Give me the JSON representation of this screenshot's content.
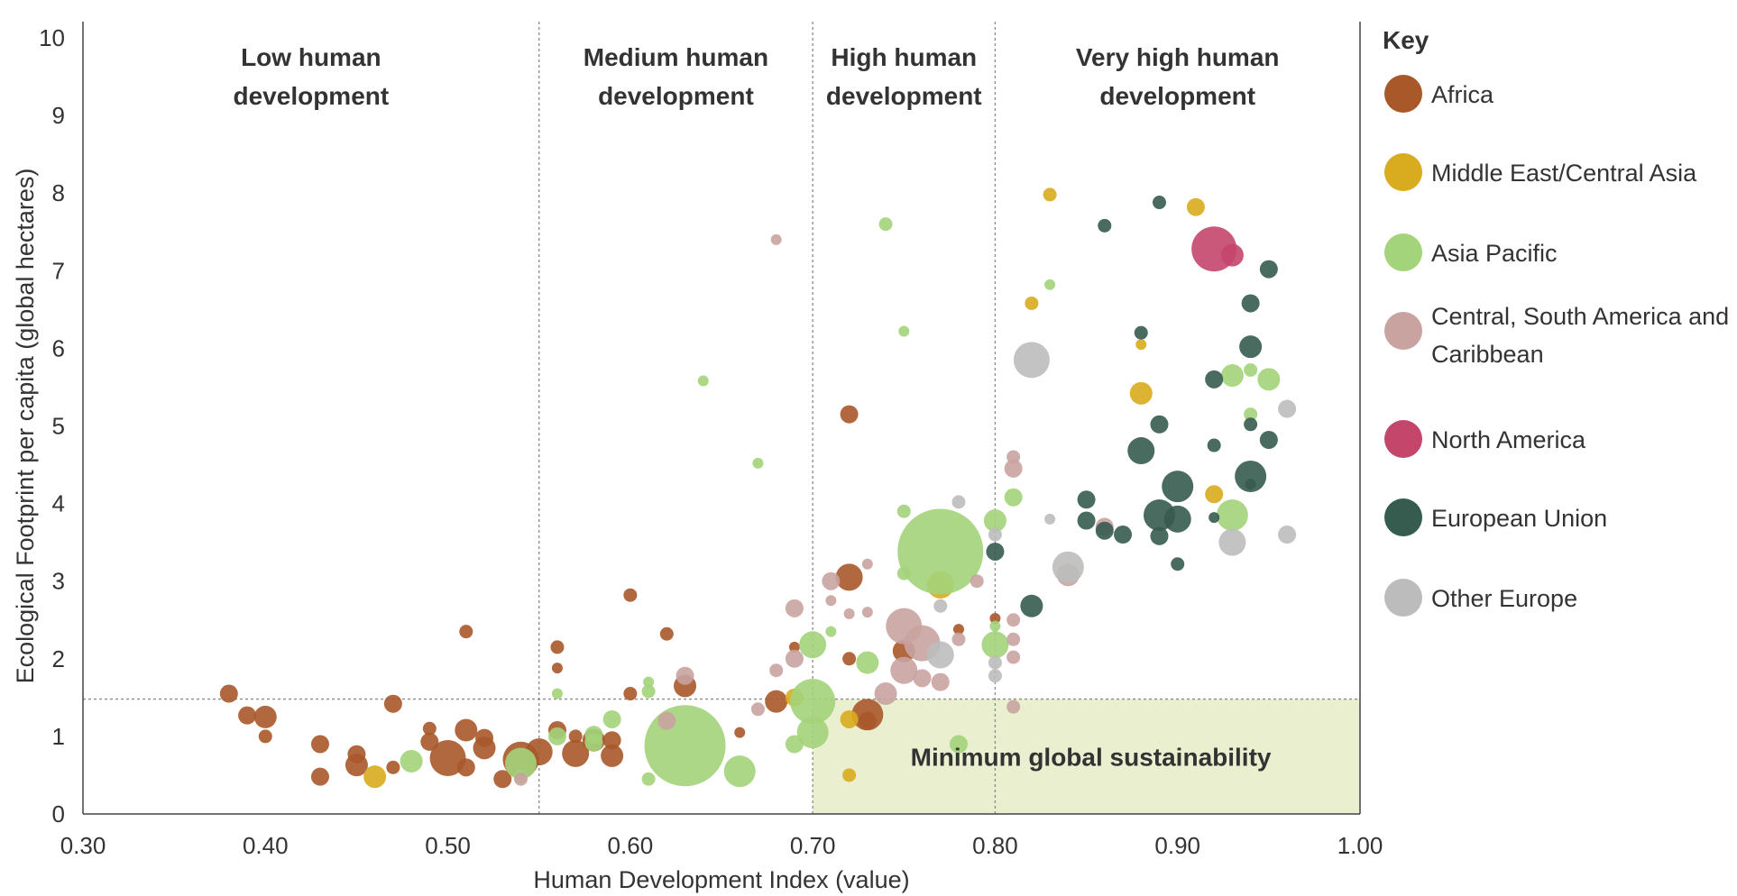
{
  "chart_data": {
    "type": "scatter",
    "subtype": "bubble",
    "xlabel": "Human Development Index (value)",
    "ylabel": "Ecological Footprint per capita (global hectares)",
    "xlim": [
      0.3,
      1.0
    ],
    "ylim": [
      0,
      10
    ],
    "x_ticks": [
      "0.30",
      "0.40",
      "0.50",
      "0.60",
      "0.70",
      "0.80",
      "0.90",
      "1.00"
    ],
    "y_ticks": [
      "0",
      "1",
      "2",
      "3",
      "4",
      "5",
      "6",
      "7",
      "8",
      "9",
      "10"
    ],
    "bands": [
      {
        "x_start": 0.3,
        "x_end": 0.55,
        "line1": "Low human",
        "line2": "development"
      },
      {
        "x_start": 0.55,
        "x_end": 0.7,
        "line1": "Medium human",
        "line2": "development"
      },
      {
        "x_start": 0.7,
        "x_end": 0.8,
        "line1": "High human",
        "line2": "development"
      },
      {
        "x_start": 0.8,
        "x_end": 1.0,
        "line1": "Very high human",
        "line2": "development"
      }
    ],
    "band_boundaries": [
      0.55,
      0.7,
      0.8
    ],
    "biocapacity_line": 1.48,
    "sustainability_region": {
      "x_min": 0.7,
      "x_max": 1.0,
      "y_min": 0,
      "y_max": 1.48,
      "label": "Minimum global sustainability",
      "color": "#e9efcf"
    },
    "legend_title": "Key",
    "legend": [
      {
        "name": "Africa",
        "color": "#a9582a"
      },
      {
        "name": "Middle East/Central Asia",
        "color": "#d9ab1e"
      },
      {
        "name": "Asia Pacific",
        "color": "#a3d37a"
      },
      {
        "name": "Central, South America and Caribbean",
        "color": "#c9a3a0"
      },
      {
        "name": "North America",
        "color": "#c4466b"
      },
      {
        "name": "European Union",
        "color": "#365b4f"
      },
      {
        "name": "Other Europe",
        "color": "#bcbcbc"
      }
    ],
    "series": [
      {
        "name": "Africa",
        "color": "#a9582a",
        "points": [
          [
            0.38,
            1.55,
            2
          ],
          [
            0.39,
            1.27,
            2
          ],
          [
            0.4,
            1.25,
            2.5
          ],
          [
            0.4,
            1.0,
            1.5
          ],
          [
            0.43,
            0.9,
            2
          ],
          [
            0.43,
            0.48,
            2
          ],
          [
            0.45,
            0.77,
            2
          ],
          [
            0.45,
            0.63,
            2.5
          ],
          [
            0.47,
            1.42,
            2
          ],
          [
            0.47,
            0.6,
            1.5
          ],
          [
            0.49,
            1.1,
            1.5
          ],
          [
            0.49,
            0.93,
            2
          ],
          [
            0.5,
            0.72,
            4
          ],
          [
            0.51,
            1.08,
            2.5
          ],
          [
            0.51,
            0.6,
            2
          ],
          [
            0.52,
            0.98,
            2
          ],
          [
            0.52,
            0.85,
            2.5
          ],
          [
            0.53,
            0.45,
            2
          ],
          [
            0.54,
            0.7,
            4
          ],
          [
            0.55,
            0.8,
            3
          ],
          [
            0.51,
            2.35,
            1.5
          ],
          [
            0.56,
            2.15,
            1.5
          ],
          [
            0.56,
            1.88,
            1.2
          ],
          [
            0.56,
            1.08,
            2
          ],
          [
            0.57,
            0.78,
            3
          ],
          [
            0.57,
            1.0,
            1.5
          ],
          [
            0.58,
            0.95,
            2.5
          ],
          [
            0.59,
            0.95,
            2
          ],
          [
            0.59,
            0.75,
            2.5
          ],
          [
            0.6,
            2.82,
            1.5
          ],
          [
            0.6,
            1.55,
            1.5
          ],
          [
            0.62,
            2.32,
            1.5
          ],
          [
            0.63,
            1.65,
            2.5
          ],
          [
            0.66,
            1.05,
            1.2
          ],
          [
            0.68,
            1.45,
            2.5
          ],
          [
            0.69,
            2.15,
            1.2
          ],
          [
            0.72,
            5.15,
            2
          ],
          [
            0.72,
            3.05,
            3
          ],
          [
            0.72,
            2.0,
            1.5
          ],
          [
            0.73,
            1.28,
            3.5
          ],
          [
            0.73,
            1.2,
            2
          ],
          [
            0.75,
            2.1,
            2.5
          ],
          [
            0.78,
            2.38,
            1.2
          ],
          [
            0.8,
            2.52,
            1.2
          ]
        ]
      },
      {
        "name": "Middle East/Central Asia",
        "color": "#d9ab1e",
        "points": [
          [
            0.46,
            0.48,
            2.5
          ],
          [
            0.69,
            1.5,
            2
          ],
          [
            0.72,
            1.22,
            2
          ],
          [
            0.72,
            0.5,
            1.5
          ],
          [
            0.77,
            2.95,
            3
          ],
          [
            0.82,
            6.58,
            1.5
          ],
          [
            0.83,
            7.98,
            1.5
          ],
          [
            0.88,
            6.05,
            1.2
          ],
          [
            0.88,
            5.42,
            2.5
          ],
          [
            0.91,
            7.82,
            2
          ],
          [
            0.92,
            4.12,
            2
          ]
        ]
      },
      {
        "name": "Asia Pacific",
        "color": "#a3d37a",
        "points": [
          [
            0.48,
            0.68,
            2.5
          ],
          [
            0.54,
            0.65,
            3.5
          ],
          [
            0.54,
            0.48,
            1.5
          ],
          [
            0.56,
            1.0,
            2
          ],
          [
            0.56,
            1.55,
            1.2
          ],
          [
            0.58,
            1.02,
            2
          ],
          [
            0.58,
            0.92,
            2
          ],
          [
            0.59,
            1.22,
            2
          ],
          [
            0.61,
            1.58,
            1.5
          ],
          [
            0.61,
            1.7,
            1.2
          ],
          [
            0.61,
            0.45,
            1.5
          ],
          [
            0.63,
            0.88,
            9
          ],
          [
            0.64,
            5.58,
            1.2
          ],
          [
            0.66,
            0.55,
            3.5
          ],
          [
            0.67,
            4.52,
            1.2
          ],
          [
            0.69,
            0.9,
            2
          ],
          [
            0.7,
            1.45,
            5
          ],
          [
            0.7,
            1.05,
            3.5
          ],
          [
            0.7,
            2.18,
            3
          ],
          [
            0.71,
            2.35,
            1.2
          ],
          [
            0.73,
            1.95,
            2.5
          ],
          [
            0.74,
            7.6,
            1.5
          ],
          [
            0.75,
            6.22,
            1.2
          ],
          [
            0.75,
            3.9,
            1.5
          ],
          [
            0.75,
            3.1,
            1.5
          ],
          [
            0.77,
            3.38,
            9.5
          ],
          [
            0.78,
            0.9,
            2
          ],
          [
            0.8,
            3.78,
            2.5
          ],
          [
            0.8,
            2.18,
            3
          ],
          [
            0.8,
            2.42,
            1.2
          ],
          [
            0.81,
            4.08,
            2
          ],
          [
            0.83,
            6.82,
            1.2
          ],
          [
            0.93,
            5.65,
            2.5
          ],
          [
            0.94,
            5.72,
            1.5
          ],
          [
            0.94,
            5.15,
            1.5
          ],
          [
            0.95,
            5.6,
            2.5
          ],
          [
            0.93,
            3.85,
            3.5
          ]
        ]
      },
      {
        "name": "Central, South America and Caribbean",
        "color": "#c9a3a0",
        "points": [
          [
            0.54,
            0.45,
            1.5
          ],
          [
            0.62,
            1.2,
            2
          ],
          [
            0.63,
            1.78,
            2
          ],
          [
            0.67,
            1.35,
            1.5
          ],
          [
            0.68,
            7.4,
            1.2
          ],
          [
            0.68,
            1.85,
            1.5
          ],
          [
            0.69,
            2.65,
            2
          ],
          [
            0.69,
            2.0,
            2
          ],
          [
            0.71,
            2.75,
            1.2
          ],
          [
            0.71,
            3.0,
            2
          ],
          [
            0.72,
            2.58,
            1.2
          ],
          [
            0.73,
            3.22,
            1.2
          ],
          [
            0.73,
            2.6,
            1.2
          ],
          [
            0.74,
            1.55,
            2.5
          ],
          [
            0.75,
            2.42,
            4
          ],
          [
            0.75,
            1.85,
            3
          ],
          [
            0.76,
            2.2,
            4
          ],
          [
            0.76,
            1.75,
            2
          ],
          [
            0.77,
            1.7,
            2
          ],
          [
            0.78,
            2.25,
            1.5
          ],
          [
            0.79,
            3.0,
            1.5
          ],
          [
            0.81,
            4.6,
            1.5
          ],
          [
            0.81,
            4.45,
            2
          ],
          [
            0.81,
            2.5,
            1.5
          ],
          [
            0.81,
            2.25,
            1.5
          ],
          [
            0.81,
            2.02,
            1.5
          ],
          [
            0.81,
            1.38,
            1.5
          ],
          [
            0.84,
            3.08,
            2.5
          ],
          [
            0.86,
            3.7,
            2
          ]
        ]
      },
      {
        "name": "North America",
        "color": "#c4466b",
        "points": [
          [
            0.92,
            7.28,
            5
          ],
          [
            0.93,
            7.2,
            2.5
          ]
        ]
      },
      {
        "name": "European Union",
        "color": "#365b4f",
        "points": [
          [
            0.8,
            3.38,
            2
          ],
          [
            0.82,
            2.68,
            2.5
          ],
          [
            0.85,
            4.05,
            2
          ],
          [
            0.85,
            3.78,
            2
          ],
          [
            0.86,
            7.58,
            1.5
          ],
          [
            0.86,
            3.65,
            2
          ],
          [
            0.87,
            3.6,
            2
          ],
          [
            0.88,
            6.2,
            1.5
          ],
          [
            0.88,
            4.68,
            3
          ],
          [
            0.89,
            7.88,
            1.5
          ],
          [
            0.89,
            5.02,
            2
          ],
          [
            0.89,
            3.85,
            3.5
          ],
          [
            0.89,
            3.58,
            2
          ],
          [
            0.9,
            4.22,
            3.5
          ],
          [
            0.9,
            3.8,
            3
          ],
          [
            0.9,
            3.22,
            1.5
          ],
          [
            0.92,
            5.6,
            2
          ],
          [
            0.92,
            4.75,
            1.5
          ],
          [
            0.92,
            3.82,
            1.2
          ],
          [
            0.94,
            6.58,
            2
          ],
          [
            0.94,
            6.02,
            2.5
          ],
          [
            0.94,
            5.02,
            1.5
          ],
          [
            0.94,
            4.35,
            3.5
          ],
          [
            0.94,
            4.25,
            1.2
          ],
          [
            0.95,
            7.02,
            2
          ],
          [
            0.95,
            4.82,
            2
          ]
        ]
      },
      {
        "name": "Other Europe",
        "color": "#bcbcbc",
        "points": [
          [
            0.77,
            2.05,
            3
          ],
          [
            0.77,
            2.68,
            1.5
          ],
          [
            0.78,
            4.02,
            1.5
          ],
          [
            0.8,
            3.6,
            1.5
          ],
          [
            0.8,
            1.95,
            1.5
          ],
          [
            0.8,
            1.78,
            1.5
          ],
          [
            0.82,
            5.85,
            4
          ],
          [
            0.83,
            3.8,
            1.2
          ],
          [
            0.84,
            3.18,
            3.5
          ],
          [
            0.93,
            3.5,
            3
          ],
          [
            0.96,
            5.22,
            2
          ],
          [
            0.96,
            3.6,
            2
          ]
        ]
      }
    ]
  }
}
